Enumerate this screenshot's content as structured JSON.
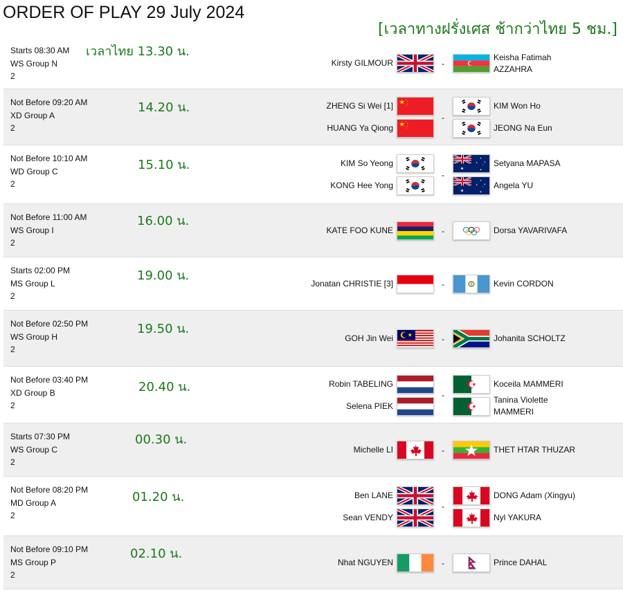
{
  "title": "ORDER OF PLAY 29 July 2024",
  "thai_note": "[เวลาทางฝรั่งเศส ช้ากว่าไทย 5 ชม.]",
  "separator": "-",
  "matches": [
    {
      "start": "Starts 08:30 AM",
      "event": "WS Group N",
      "court": "2",
      "thai_time": "เวลาไทย 13.30 น.",
      "left": [
        {
          "name": "Kirsty GILMOUR",
          "flag": "gb"
        }
      ],
      "right": [
        {
          "name": "Keisha Fatimah AZZAHRA",
          "flag": "az"
        }
      ]
    },
    {
      "start": "Not Before 09:20 AM",
      "event": "XD Group A",
      "court": "2",
      "thai_time": "14.20 น.",
      "left": [
        {
          "name": "ZHENG Si Wei [1]",
          "flag": "cn"
        },
        {
          "name": "HUANG Ya Qiong",
          "flag": "cn"
        }
      ],
      "right": [
        {
          "name": "KIM Won Ho",
          "flag": "kr"
        },
        {
          "name": "JEONG Na Eun",
          "flag": "kr"
        }
      ]
    },
    {
      "start": "Not Before 10:10 AM",
      "event": "WD Group C",
      "court": "2",
      "thai_time": "15.10 น.",
      "left": [
        {
          "name": "KIM So Yeong",
          "flag": "kr"
        },
        {
          "name": "KONG Hee Yong",
          "flag": "kr"
        }
      ],
      "right": [
        {
          "name": "Setyana MAPASA",
          "flag": "au"
        },
        {
          "name": "Angela YU",
          "flag": "au"
        }
      ]
    },
    {
      "start": "Not Before 11:00 AM",
      "event": "WS Group I",
      "court": "2",
      "thai_time": "16.00 น.",
      "left": [
        {
          "name": "KATE FOO KUNE",
          "flag": "mu"
        }
      ],
      "right": [
        {
          "name": "Dorsa YAVARIVAFA",
          "flag": "olympic"
        }
      ]
    },
    {
      "start": "Starts 02:00 PM",
      "event": "MS Group L",
      "court": "2",
      "thai_time": "19.00 น.",
      "left": [
        {
          "name": "Jonatan CHRISTIE [3]",
          "flag": "id"
        }
      ],
      "right": [
        {
          "name": "Kevin CORDON",
          "flag": "gt"
        }
      ]
    },
    {
      "start": "Not Before 02:50 PM",
      "event": "WS Group H",
      "court": "2",
      "thai_time": "19.50 น.",
      "left": [
        {
          "name": "GOH Jin Wei",
          "flag": "my"
        }
      ],
      "right": [
        {
          "name": "Johanita SCHOLTZ",
          "flag": "za"
        }
      ]
    },
    {
      "start": "Not Before 03:40 PM",
      "event": "XD Group B",
      "court": "2",
      "thai_time": "20.40 น.",
      "left": [
        {
          "name": "Robin TABELING",
          "flag": "nl"
        },
        {
          "name": "Selena PIEK",
          "flag": "nl"
        }
      ],
      "right": [
        {
          "name": "Koceila MAMMERI",
          "flag": "dz"
        },
        {
          "name": "Tanina Violette MAMMERI",
          "flag": "dz"
        }
      ]
    },
    {
      "start": "Starts 07:30 PM",
      "event": "WS Group C",
      "court": "2",
      "thai_time": "00.30 น.",
      "left": [
        {
          "name": "Michelle LI",
          "flag": "ca"
        }
      ],
      "right": [
        {
          "name": "THET HTAR THUZAR",
          "flag": "mm"
        }
      ]
    },
    {
      "start": "Not Before 08:20 PM",
      "event": "MD Group A",
      "court": "2",
      "thai_time": "01.20 น.",
      "left": [
        {
          "name": "Ben LANE",
          "flag": "gb"
        },
        {
          "name": "Sean VENDY",
          "flag": "gb"
        }
      ],
      "right": [
        {
          "name": "DONG Adam (Xingyu)",
          "flag": "ca"
        },
        {
          "name": "Nyl YAKURA",
          "flag": "ca"
        }
      ]
    },
    {
      "start": "Not Before 09:10 PM",
      "event": "MS Group P",
      "court": "2",
      "thai_time": "02.10 น.",
      "left": [
        {
          "name": "Nhat NGUYEN",
          "flag": "ie"
        }
      ],
      "right": [
        {
          "name": "Prince DAHAL",
          "flag": "np"
        }
      ]
    }
  ]
}
